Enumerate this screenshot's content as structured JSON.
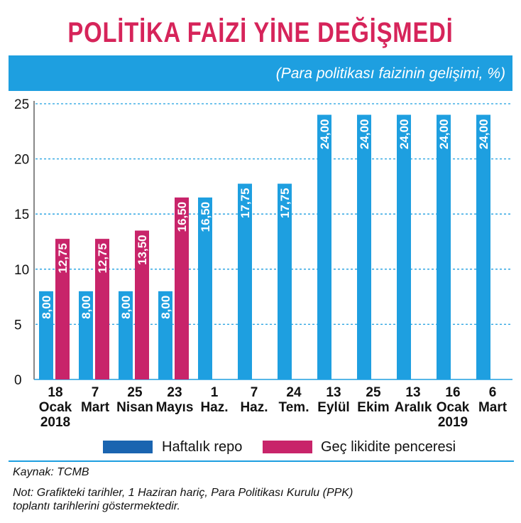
{
  "title": "POLİTİKA FAİZİ YİNE DEĞİŞMEDİ",
  "subtitle": "(Para politikası faizinin gelişimi, %)",
  "source": "Kaynak: TCMB",
  "note_line1": "Not: Grafikteki tarihler, 1 Haziran hariç, Para Politikası Kurulu (PPK)",
  "note_line2": "toplantı tarihlerini göstermektedir.",
  "colors": {
    "accent": "#1e9fe0",
    "title": "#d6245a",
    "series1": "#1e9fe0",
    "series2": "#c8246a",
    "legend1": "#1a64b0"
  },
  "chart_data": {
    "type": "bar",
    "categories": [
      [
        "18",
        "Ocak",
        "2018"
      ],
      [
        "7",
        "Mart"
      ],
      [
        "25",
        "Nisan"
      ],
      [
        "23",
        "Mayıs"
      ],
      [
        "1",
        "Haz."
      ],
      [
        "7",
        "Haz."
      ],
      [
        "24",
        "Tem."
      ],
      [
        "13",
        "Eylül"
      ],
      [
        "25",
        "Ekim"
      ],
      [
        "13",
        "Aralık"
      ],
      [
        "16",
        "Ocak",
        "2019"
      ],
      [
        "6",
        "Mart"
      ]
    ],
    "series": [
      {
        "name": "Haftalık repo",
        "values": [
          8.0,
          8.0,
          8.0,
          8.0,
          16.5,
          17.75,
          17.75,
          24.0,
          24.0,
          24.0,
          24.0,
          24.0
        ],
        "labels": [
          "8,00",
          "8,00",
          "8,00",
          "8,00",
          "16,50",
          "17,75",
          "17,75",
          "24,00",
          "24,00",
          "24,00",
          "24,00",
          "24,00"
        ]
      },
      {
        "name": "Geç likidite penceresi",
        "values": [
          12.75,
          12.75,
          13.5,
          16.5,
          null,
          null,
          null,
          null,
          null,
          null,
          null,
          null
        ],
        "labels": [
          "12,75",
          "12,75",
          "13,50",
          "16,50",
          "",
          "",
          "",
          "",
          "",
          "",
          "",
          ""
        ]
      }
    ],
    "ylim": [
      0,
      25
    ],
    "yticks": [
      0,
      5,
      10,
      15,
      20,
      25
    ],
    "grid": true,
    "legend": "bottom"
  }
}
